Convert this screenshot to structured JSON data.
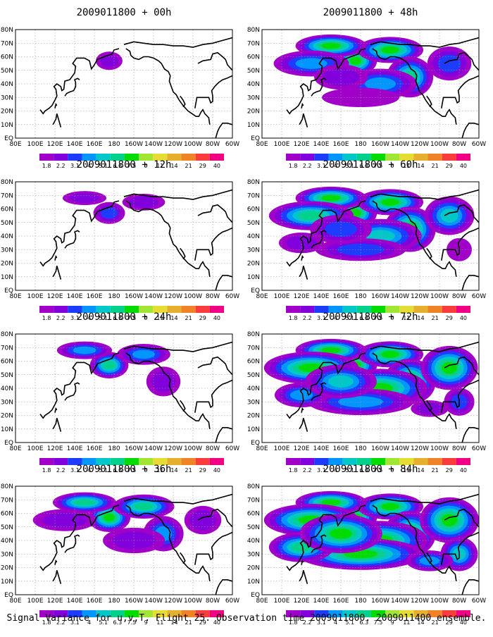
{
  "caption": "Signal Variance for u,v,T. Flight 25. Observation time 2009011800. 2009011400 ensemble.",
  "chart_data": {
    "type": "heatmap",
    "panels": [
      {
        "title": "2009011800 + 00h",
        "lead_hours": 0,
        "intensity": 0.1
      },
      {
        "title": "2009011800 + 12h",
        "lead_hours": 12,
        "intensity": 0.22
      },
      {
        "title": "2009011800 + 24h",
        "lead_hours": 24,
        "intensity": 0.38
      },
      {
        "title": "2009011800 + 36h",
        "lead_hours": 36,
        "intensity": 0.5
      },
      {
        "title": "2009011800 + 48h",
        "lead_hours": 48,
        "intensity": 0.62
      },
      {
        "title": "2009011800 + 60h",
        "lead_hours": 60,
        "intensity": 0.72
      },
      {
        "title": "2009011800 + 72h",
        "lead_hours": 72,
        "intensity": 0.84
      },
      {
        "title": "2009011800 + 84h",
        "lead_hours": 84,
        "intensity": 1.0
      }
    ],
    "x_ticks": [
      "80E",
      "100E",
      "120E",
      "140E",
      "160E",
      "180",
      "160W",
      "140W",
      "120W",
      "100W",
      "80W",
      "60W"
    ],
    "y_ticks": [
      "EQ",
      "10N",
      "20N",
      "30N",
      "40N",
      "50N",
      "60N",
      "70N",
      "80N"
    ],
    "xlim": [
      "80E",
      "60W"
    ],
    "ylim": [
      "EQ",
      "80N"
    ],
    "colorbar": {
      "levels": [
        "1.8",
        "2.2",
        "3.1",
        "4",
        "5.1",
        "6.3",
        "7.5",
        "9",
        "11",
        "14",
        "21",
        "29",
        "40"
      ],
      "colors": [
        "#a000c8",
        "#8200dc",
        "#1e3cff",
        "#0096ff",
        "#00c8c8",
        "#00d28c",
        "#00dc00",
        "#a0e632",
        "#e6dc32",
        "#e6af2d",
        "#f08228",
        "#fa3c3c",
        "#f00082"
      ]
    },
    "grid": true
  }
}
